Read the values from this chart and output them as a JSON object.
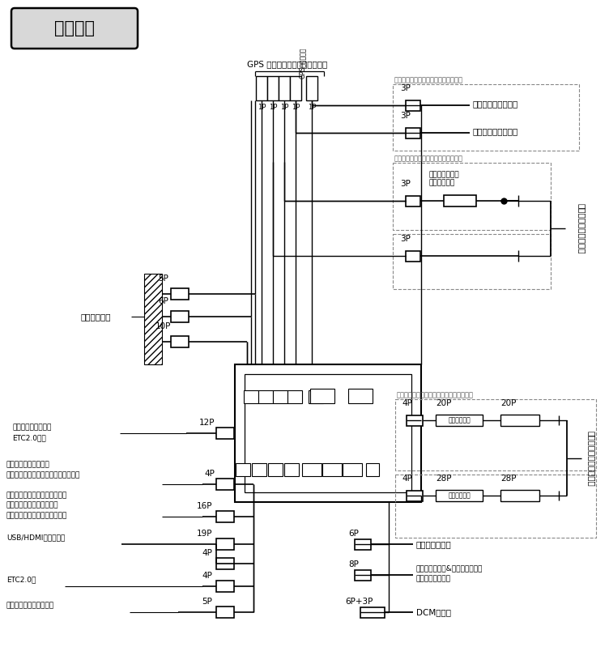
{
  "bg_color": "#ffffff",
  "line_color": "#000000",
  "gray_text": "#555555",
  "title_text": "結線方法",
  "gps_label": "GPS 一体フロント４アンテナへ",
  "harness_label": "車両ハーネス",
  "rear_disp_box_label": "車種によりどちらかの選択になります",
  "antenna_box_label": "車種によりアンテナ形状が異なります",
  "steering_box_label": "車種によりコネクターピン数が異なります",
  "rear_disp_label": "後席ディスプレイへ",
  "radio_ant_label": "車両ラジオアンテナへ",
  "radio_cable_label1": "ラジオアンテナ",
  "radio_cable_label2": "変換ケーブル",
  "steering_label": "ステアリングスイッチへ",
  "conn_12p_label1": "後席ディスプレイや",
  "conn_12p_label2": "ETC2.0等へ",
  "conn_4p_bk_label1": "バックモニターまたは",
  "conn_4p_bk_label2": "マルチビューバックガイドモニターへ",
  "conn_16p_label1": "ブラインドコーナーモニター、",
  "conn_16p_label2": "コーナービューモニターへ",
  "conn_16p_label3": "（別売スイッチケーブル使用）",
  "conn_usb_label": "USB/HDMI入力端子へ",
  "conn_etc_label": "ETC2.0へ",
  "conn_comm_label": "車両通信接続ハーネスへ",
  "conn_rudder_label": "舵角センサーへ",
  "conn_voice_label1": "音声認識マイク&スイッチまたは",
  "conn_voice_label2": "音声認識マイクへ",
  "conn_dcm_label": "DCM本体へ"
}
